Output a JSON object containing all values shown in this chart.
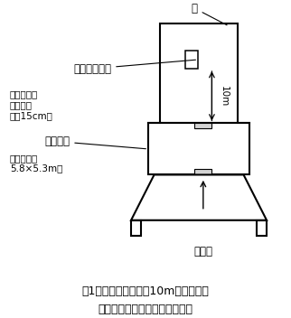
{
  "title_line1": "図1　捕獲時間および10mロープ誘導",
  "title_line2": "時間の測定に用いた施設の概略",
  "label_shelf": "棚",
  "label_platform": "ベニア板製台",
  "label_platform_detail": "〔間口１ｍ\n奥行１ｍ\n高さ15cm〕",
  "label_facility": "捕獲施設",
  "label_facility_detail": "〔牛衝器室\n5.8×5.3m〕",
  "label_waiting": "待機場",
  "label_10m": "10m",
  "bg_color": "#ffffff",
  "line_color": "#000000",
  "font_size_title": 9,
  "font_size_label": 8.5,
  "font_size_detail": 7.5,
  "font_size_small": 8
}
